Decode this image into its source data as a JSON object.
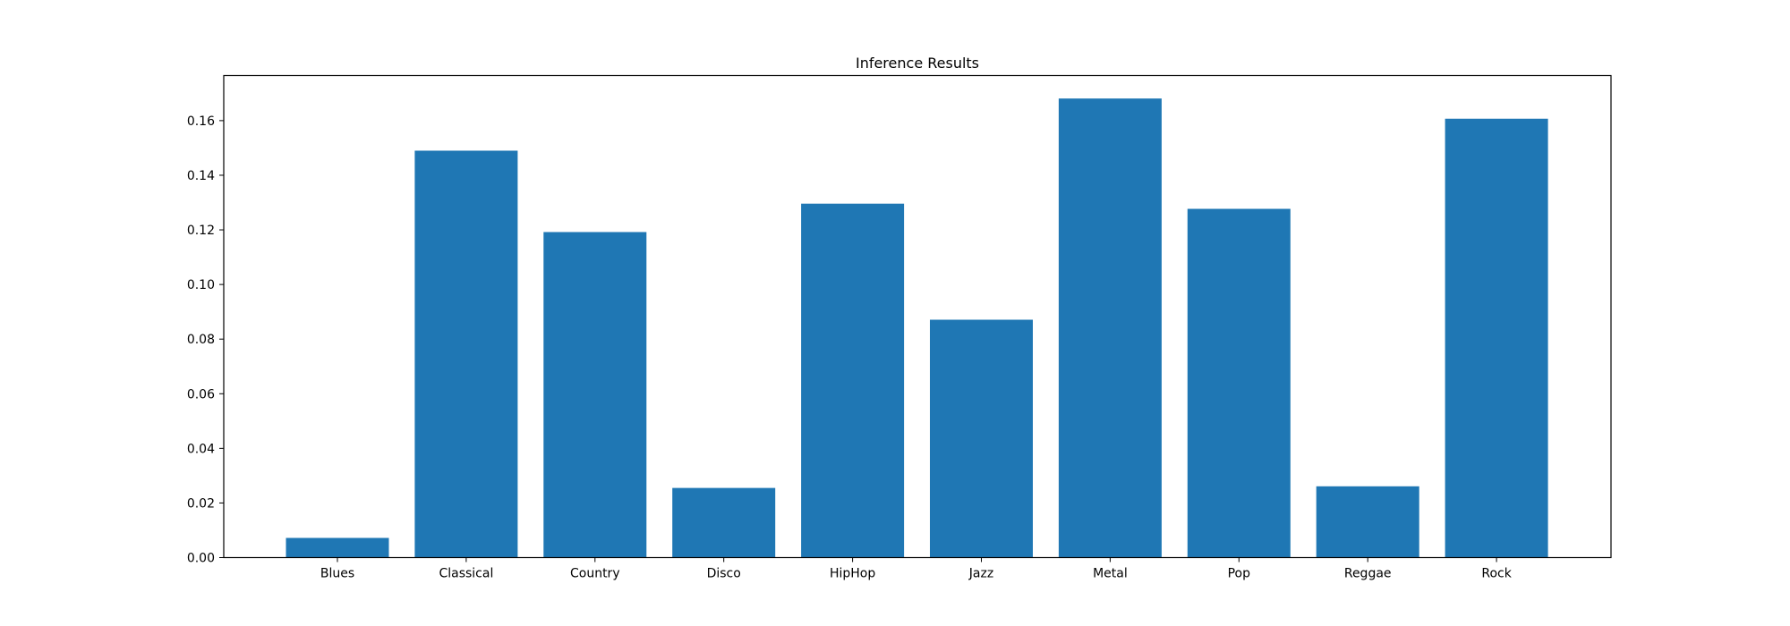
{
  "chart_data": {
    "type": "bar",
    "title": "Inference Results",
    "xlabel": "",
    "ylabel": "",
    "categories": [
      "Blues",
      "Classical",
      "Country",
      "Disco",
      "HipHop",
      "Jazz",
      "Metal",
      "Pop",
      "Reggae",
      "Rock"
    ],
    "values": [
      0.0072,
      0.149,
      0.1192,
      0.0255,
      0.1296,
      0.0871,
      0.1681,
      0.1277,
      0.0261,
      0.1607
    ],
    "ylim": [
      0,
      0.1765
    ],
    "yticks": [
      0.0,
      0.02,
      0.04,
      0.06,
      0.08,
      0.1,
      0.12,
      0.14,
      0.16
    ],
    "ytick_labels": [
      "0.00",
      "0.02",
      "0.04",
      "0.06",
      "0.08",
      "0.10",
      "0.12",
      "0.14",
      "0.16"
    ],
    "grid": false,
    "legend": "none",
    "bar_color": "#1f77b4"
  }
}
